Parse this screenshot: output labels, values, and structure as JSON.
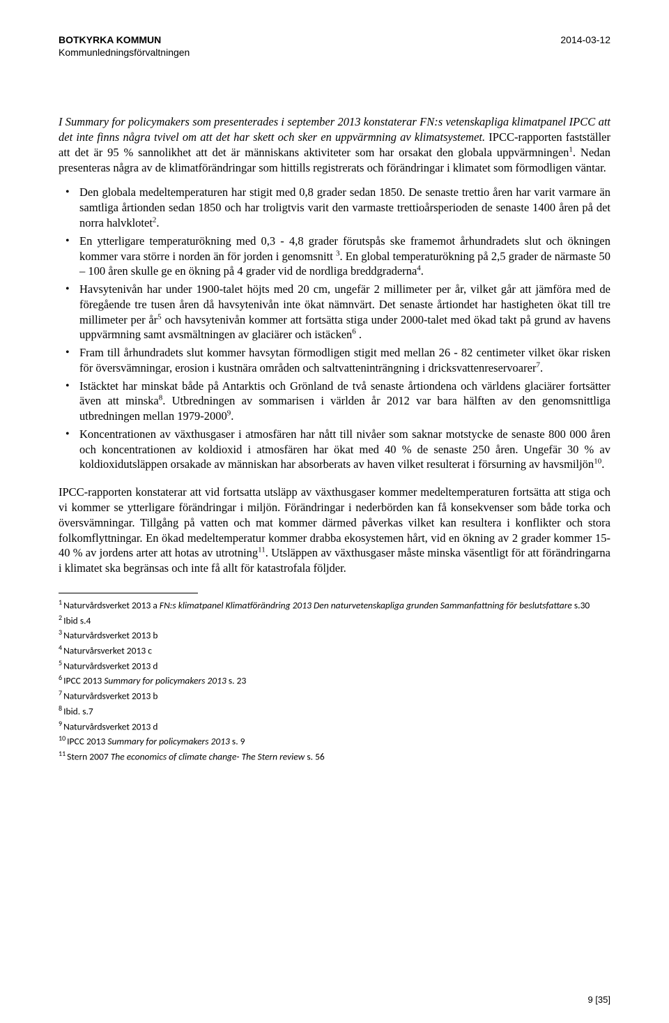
{
  "header": {
    "org_line1": "BOTKYRKA KOMMUN",
    "org_line2": "Kommunledningsförvaltningen",
    "date": "2014-03-12"
  },
  "section_heading": "I Summary for policymakers som presenterades i september 2013 konstaterar FN:s vetenskapliga klimatpanel IPCC att det inte finns några tvivel om att det har skett och sker en uppvärmning av klimatsystemet.",
  "intro_tail": " IPCC-rapporten fastställer att det är 95 % sannolikhet att det är människans aktiviteter som har orsakat den globala uppvärmningen",
  "intro_tail2": ". Nedan presenteras några av de klimatförändringar som hittills registrerats och förändringar i klimatet som förmodligen väntar.",
  "bullets": [
    {
      "pre": "Den globala medeltemperaturen har stigit med 0,8 grader sedan 1850. De senaste trettio åren har varit varmare än samtliga årtionden sedan 1850 och har troligtvis varit den varmaste trettioårsperioden de senaste 1400 åren på det norra halvklotet",
      "sup": "2",
      "post": "."
    },
    {
      "pre": "En ytterligare temperaturökning med 0,3 - 4,8 grader förutspås ske framemot århundradets slut och ökningen kommer vara större i norden än för jorden i genomsnitt ",
      "sup": "3",
      "post": ". En global temperaturökning på 2,5 grader de närmaste 50 – 100 åren skulle ge en ökning på 4 grader vid de nordliga breddgraderna",
      "sup2": "4",
      "post2": "."
    },
    {
      "pre": "Havsytenivån har under 1900-talet höjts med 20 cm, ungefär 2 millimeter per år, vilket går att jämföra med de föregående tre tusen åren då havsytenivån inte ökat nämnvärt. Det senaste årtiondet har hastigheten ökat till tre millimeter per år",
      "sup": "5",
      "post": " och havsytenivån kommer att fortsätta stiga under 2000-talet med ökad takt på grund av havens uppvärmning samt avsmältningen av glaciärer och istäcken",
      "sup2": "6",
      "post2": " ."
    },
    {
      "pre": "Fram till århundradets slut kommer havsytan förmodligen stigit med mellan 26 - 82 centimeter vilket ökar risken för översvämningar, erosion i kustnära områden och saltvatteninträngning i dricksvattenreservoarer",
      "sup": "7",
      "post": "."
    },
    {
      "pre": " Istäcktet har minskat både på Antarktis och Grönland de två senaste årtiondena och världens glaciärer fortsätter även att minska",
      "sup": "8",
      "post": ". Utbredningen av sommarisen i världen år 2012 var bara hälften av den genomsnittliga utbredningen mellan 1979-2000",
      "sup2": "9",
      "post2": "."
    },
    {
      "pre": "Koncentrationen av växthusgaser i atmosfären har nått till nivåer som saknar motstycke de senaste 800 000 åren och koncentrationen av koldioxid i atmosfären har ökat med 40 % de senaste 250 åren.  Ungefär 30 % av koldioxidutsläppen orsakade av människan har absorberats av haven vilket resulterat i försurning av havsmiljön",
      "sup": "10",
      "post": "."
    }
  ],
  "closing": {
    "pre": "IPCC-rapporten konstaterar att vid fortsatta utsläpp av växthusgaser kommer medeltemperaturen fortsätta att stiga och vi kommer se ytterligare förändringar i miljön. Förändringar i nederbörden kan få konsekvenser som både torka och översvämningar. Tillgång på vatten och mat kommer därmed påverkas vilket kan resultera i konflikter och stora folkomflyttningar. En ökad medeltemperatur kommer drabba ekosystemen hårt, vid en ökning av 2 grader kommer 15-40 % av jordens arter att hotas av utrotning",
    "sup": "11",
    "post": ". Utsläppen av växthusgaser måste minska väsentligt för att förändringarna i klimatet ska begränsas och inte få allt för katastrofala följder."
  },
  "footnotes": [
    {
      "n": "1",
      "plain_a": "Naturvårdsverket 2013 a ",
      "ital": "FN:s klimatpanel Klimatförändring 2013 Den naturvetenskapliga grunden Sammanfattning för beslutsfattare",
      "plain_b": " s.30"
    },
    {
      "n": "2",
      "plain_a": "Ibid s.4",
      "ital": "",
      "plain_b": ""
    },
    {
      "n": "3",
      "plain_a": "Naturvårdsverket 2013 b",
      "ital": "",
      "plain_b": ""
    },
    {
      "n": "4",
      "plain_a": "Naturvårsverket 2013 c",
      "ital": "",
      "plain_b": ""
    },
    {
      "n": "5",
      "plain_a": "Naturvårdsverket 2013 d",
      "ital": "",
      "plain_b": ""
    },
    {
      "n": "6",
      "plain_a": "IPCC 2013 ",
      "ital": "Summary for policymakers 2013",
      "plain_b": " s. 23"
    },
    {
      "n": "7",
      "plain_a": "Naturvårdsverket 2013 b",
      "ital": "",
      "plain_b": ""
    },
    {
      "n": "8",
      "plain_a": "Ibid. s.7",
      "ital": "",
      "plain_b": ""
    },
    {
      "n": "9",
      "plain_a": "Naturvårdsverket 2013 d",
      "ital": "",
      "plain_b": ""
    },
    {
      "n": "10",
      "plain_a": "IPCC 2013 ",
      "ital": "Summary for policymakers 2013",
      "plain_b": " s. 9"
    },
    {
      "n": "11",
      "plain_a": "Stern 2007 ",
      "ital": "The economics of climate change- The Stern review",
      "plain_b": " s. 56"
    }
  ],
  "page_number": "9 [35]",
  "intro_sup": "1"
}
